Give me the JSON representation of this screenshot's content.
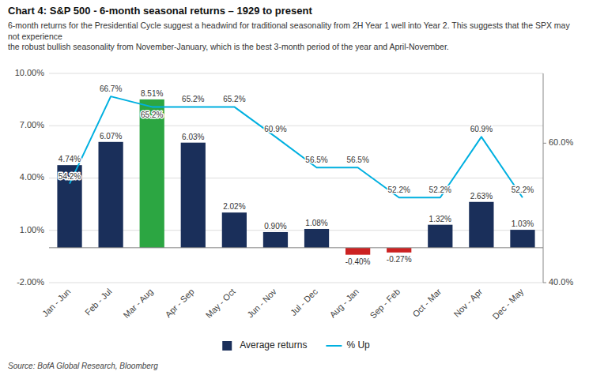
{
  "chart_data": {
    "type": "bar",
    "title": "Chart 4: S&P 500 - 6-month seasonal returns – 1929 to present",
    "subtitle": "6-month returns for the Presidential Cycle suggest a headwind for traditional seasonality from 2H Year 1 well into Year 2. This suggests that the SPX may not experience\nthe robust bullish seasonality from November-January, which is the best 3-month period of the year and April-November.",
    "source": "Source: BofA Global Research, Bloomberg",
    "categories": [
      "Jan - Jun",
      "Feb - Jul",
      "Mar - Aug",
      "Apr - Sep",
      "May - Oct",
      "Jun - Nov",
      "Jul - Dec",
      "Aug - Jan",
      "Sep - Feb",
      "Oct - Mar",
      "Nov - Apr",
      "Dec - May"
    ],
    "series": [
      {
        "name": "Average returns",
        "type": "bar",
        "color": "#1a2f5a",
        "colors": [
          "#1a2f5a",
          "#1a2f5a",
          "#2ca642",
          "#1a2f5a",
          "#1a2f5a",
          "#1a2f5a",
          "#1a2f5a",
          "#cc2222",
          "#cc2222",
          "#1a2f5a",
          "#1a2f5a",
          "#1a2f5a"
        ],
        "values": [
          4.74,
          6.07,
          8.51,
          6.03,
          2.02,
          0.9,
          1.08,
          -0.4,
          -0.27,
          1.32,
          2.63,
          1.03
        ],
        "value_labels": [
          "4.74%",
          "6.07%",
          "8.51%",
          "6.03%",
          "2.02%",
          "0.90%",
          "1.08%",
          "-0.40%",
          "-0.27%",
          "1.32%",
          "2.63%",
          "1.03%"
        ]
      },
      {
        "name": "% Up",
        "type": "line",
        "axis": "y2",
        "color": "#00b0e0",
        "values": [
          54.2,
          66.7,
          65.2,
          65.2,
          65.2,
          60.9,
          56.5,
          56.5,
          52.2,
          52.2,
          60.9,
          52.2
        ],
        "value_labels": [
          "54.2%",
          "66.7%",
          "65.2%",
          "65.2%",
          "65.2%",
          "60.9%",
          "56.5%",
          "56.5%",
          "52.2%",
          "52.2%",
          "60.9%",
          "52.2%"
        ]
      }
    ],
    "ylim": [
      -2.0,
      10.0
    ],
    "yticks": [
      {
        "value": -2.0,
        "label": "-2.00%"
      },
      {
        "value": 1.0,
        "label": "1.00%"
      },
      {
        "value": 4.0,
        "label": "4.00%"
      },
      {
        "value": 7.0,
        "label": "7.00%"
      },
      {
        "value": 10.0,
        "label": "10.00%"
      }
    ],
    "y2lim": [
      40.0,
      70.0
    ],
    "y2ticks": [
      {
        "value": 40.0,
        "label": "40.0%"
      },
      {
        "value": 60.0,
        "label": "60.0%"
      }
    ],
    "grid": true,
    "legend": "bottom",
    "data_labels": true
  }
}
